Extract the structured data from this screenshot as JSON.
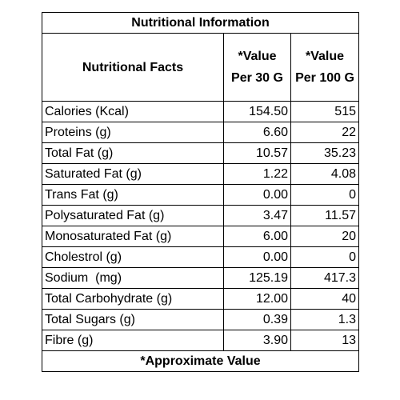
{
  "title": "Nutritional Information",
  "headers": {
    "facts": "Nutritional Facts",
    "value_30": "*Value Per 30 G",
    "value_100": "*Value Per 100 G"
  },
  "rows": [
    {
      "name": "Calories (Kcal)",
      "v30": "154.50",
      "v100": "515"
    },
    {
      "name": "Proteins (g)",
      "v30": "6.60",
      "v100": "22"
    },
    {
      "name": "Total Fat (g)",
      "v30": "10.57",
      "v100": "35.23"
    },
    {
      "name": "Saturated Fat (g)",
      "v30": "1.22",
      "v100": "4.08"
    },
    {
      "name": "Trans Fat (g)",
      "v30": "0.00",
      "v100": "0"
    },
    {
      "name": "Polysaturated Fat (g)",
      "v30": "3.47",
      "v100": "11.57"
    },
    {
      "name": "Monosaturated Fat (g)",
      "v30": "6.00",
      "v100": "20"
    },
    {
      "name": "Cholestrol (g)",
      "v30": "0.00",
      "v100": "0"
    },
    {
      "name": "Sodium  (mg)",
      "v30": "125.19",
      "v100": "417.3"
    },
    {
      "name": "Total Carbohydrate (g)",
      "v30": "12.00",
      "v100": "40"
    },
    {
      "name": "Total Sugars (g)",
      "v30": "0.39",
      "v100": "1.3"
    },
    {
      "name": "Fibre (g)",
      "v30": "3.90",
      "v100": "13"
    }
  ],
  "footer": "*Approximate Value"
}
